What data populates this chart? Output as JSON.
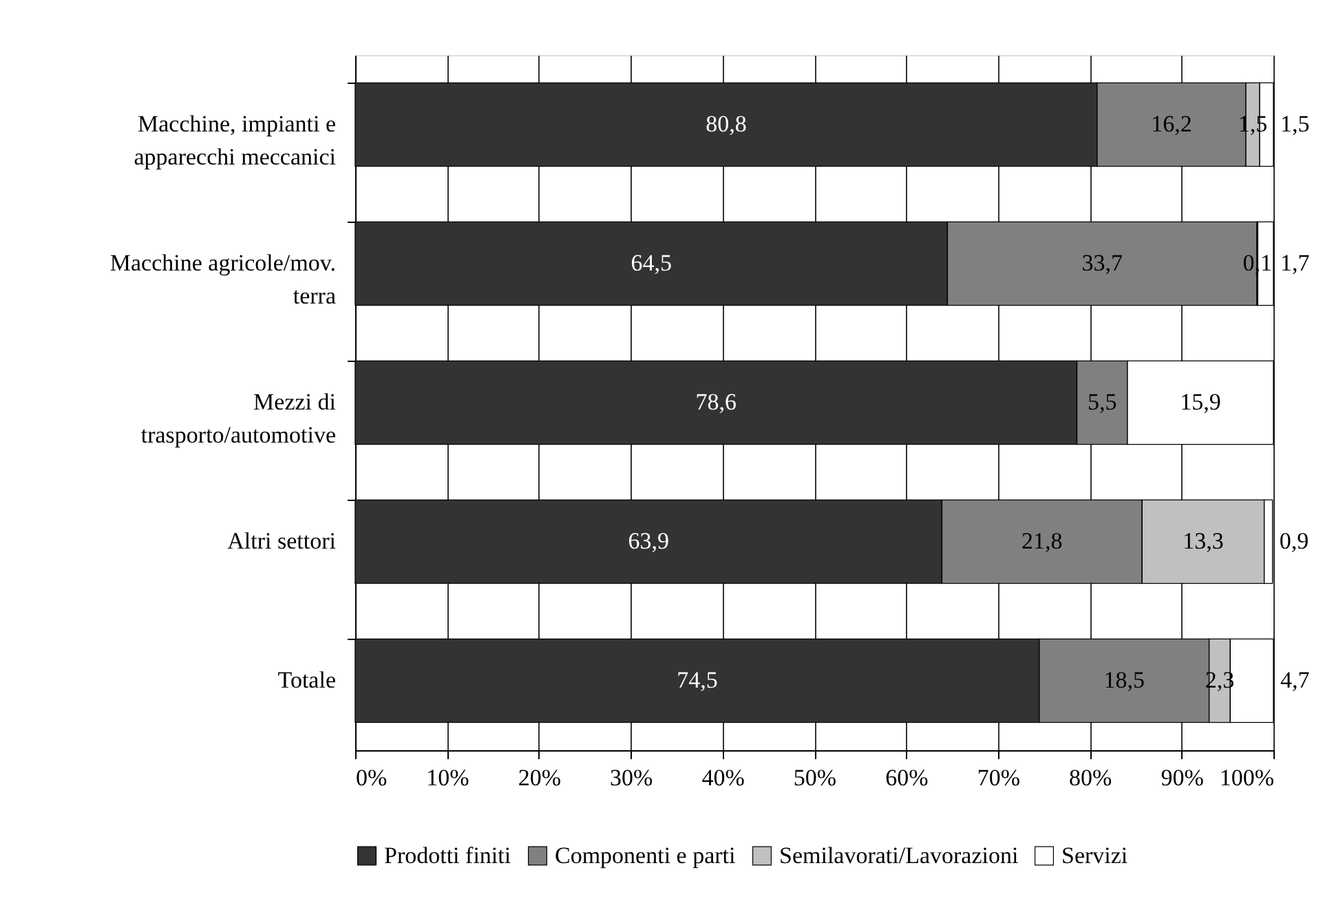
{
  "chart_data": {
    "type": "bar",
    "orientation": "horizontal",
    "stacked": true,
    "categories": [
      "Macchine, impianti e apparecchi meccanici",
      "Macchine agricole/mov. terra",
      "Mezzi di trasporto/automotive",
      "Altri settori",
      "Totale"
    ],
    "series": [
      {
        "name": "Prodotti finiti",
        "color": "#333333",
        "values": [
          80.8,
          64.5,
          78.6,
          63.9,
          74.5
        ],
        "value_labels": [
          "80,8",
          "64,5",
          "78,6",
          "63,9",
          "74,5"
        ]
      },
      {
        "name": "Componenti e parti",
        "color": "#808080",
        "values": [
          16.2,
          33.7,
          5.5,
          21.8,
          18.5
        ],
        "value_labels": [
          "16,2",
          "33,7",
          "5,5",
          "21,8",
          "18,5"
        ]
      },
      {
        "name": "Semilavorati/Lavorazioni",
        "color": "#c0c0c0",
        "values": [
          1.5,
          0.1,
          null,
          13.3,
          2.3
        ],
        "value_labels": [
          "1,5",
          "0,1",
          null,
          "13,3",
          "2,3"
        ]
      },
      {
        "name": "Servizi",
        "color": "#ffffff",
        "values": [
          1.5,
          1.7,
          15.9,
          0.9,
          4.7
        ],
        "value_labels": [
          "1,5",
          "1,7",
          "15,9",
          "0,9",
          "4,7"
        ]
      }
    ],
    "xlim": [
      0,
      100
    ],
    "xticks": [
      {
        "value": 0,
        "label": "0%"
      },
      {
        "value": 10,
        "label": "10%"
      },
      {
        "value": 20,
        "label": "20%"
      },
      {
        "value": 30,
        "label": "30%"
      },
      {
        "value": 40,
        "label": "40%"
      },
      {
        "value": 50,
        "label": "50%"
      },
      {
        "value": 60,
        "label": "60%"
      },
      {
        "value": 70,
        "label": "70%"
      },
      {
        "value": 80,
        "label": "80%"
      },
      {
        "value": 90,
        "label": "90%"
      },
      {
        "value": 100,
        "label": "100%"
      }
    ],
    "grid": "x",
    "legend": "bottom"
  }
}
